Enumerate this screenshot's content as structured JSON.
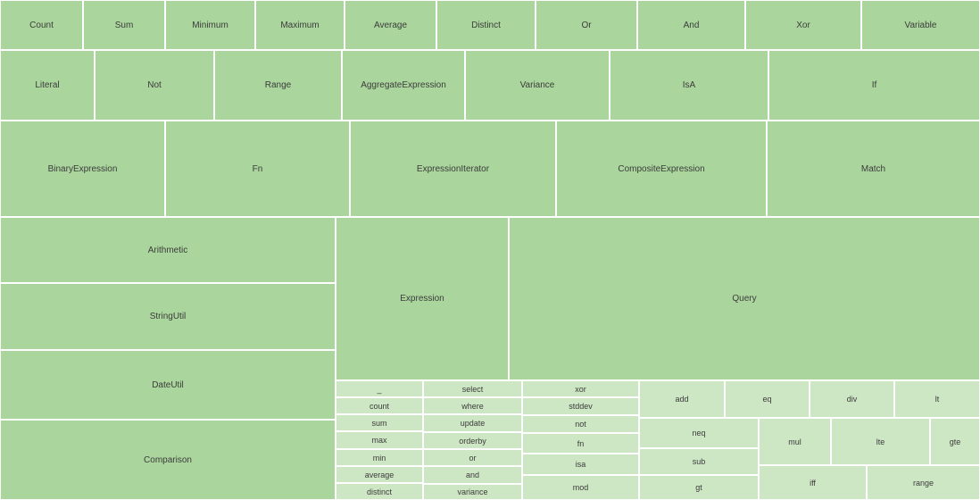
{
  "colors": {
    "level1": "#aad59c",
    "level2": "#cde6c3",
    "border": "#ffffff",
    "text": "#3c3c3c"
  },
  "cells": [
    {
      "label": "Count"
    },
    {
      "label": "Sum"
    },
    {
      "label": "Minimum"
    },
    {
      "label": "Maximum"
    },
    {
      "label": "Average"
    },
    {
      "label": "Distinct"
    },
    {
      "label": "Or"
    },
    {
      "label": "And"
    },
    {
      "label": "Xor"
    },
    {
      "label": "Variable"
    },
    {
      "label": "Literal"
    },
    {
      "label": "Not"
    },
    {
      "label": "Range"
    },
    {
      "label": "AggregateExpression"
    },
    {
      "label": "Variance"
    },
    {
      "label": "IsA"
    },
    {
      "label": "If"
    },
    {
      "label": "BinaryExpression"
    },
    {
      "label": "Fn"
    },
    {
      "label": "ExpressionIterator"
    },
    {
      "label": "CompositeExpression"
    },
    {
      "label": "Match"
    },
    {
      "label": "Arithmetic"
    },
    {
      "label": "StringUtil"
    },
    {
      "label": "DateUtil"
    },
    {
      "label": "Comparison"
    },
    {
      "label": "Expression"
    },
    {
      "label": "Query"
    },
    {
      "label": "_"
    },
    {
      "label": "count"
    },
    {
      "label": "sum"
    },
    {
      "label": "max"
    },
    {
      "label": "min"
    },
    {
      "label": "average"
    },
    {
      "label": "distinct"
    },
    {
      "label": "select"
    },
    {
      "label": "where"
    },
    {
      "label": "update"
    },
    {
      "label": "orderby"
    },
    {
      "label": "or"
    },
    {
      "label": "and"
    },
    {
      "label": "variance"
    },
    {
      "label": "xor"
    },
    {
      "label": "stddev"
    },
    {
      "label": "not"
    },
    {
      "label": "fn"
    },
    {
      "label": "isa"
    },
    {
      "label": "mod"
    },
    {
      "label": "add"
    },
    {
      "label": "eq"
    },
    {
      "label": "div"
    },
    {
      "label": "lt"
    },
    {
      "label": "neq"
    },
    {
      "label": "sub"
    },
    {
      "label": "gt"
    },
    {
      "label": "mul"
    },
    {
      "label": "lte"
    },
    {
      "label": "gte"
    },
    {
      "label": "iff"
    },
    {
      "label": "range"
    }
  ]
}
